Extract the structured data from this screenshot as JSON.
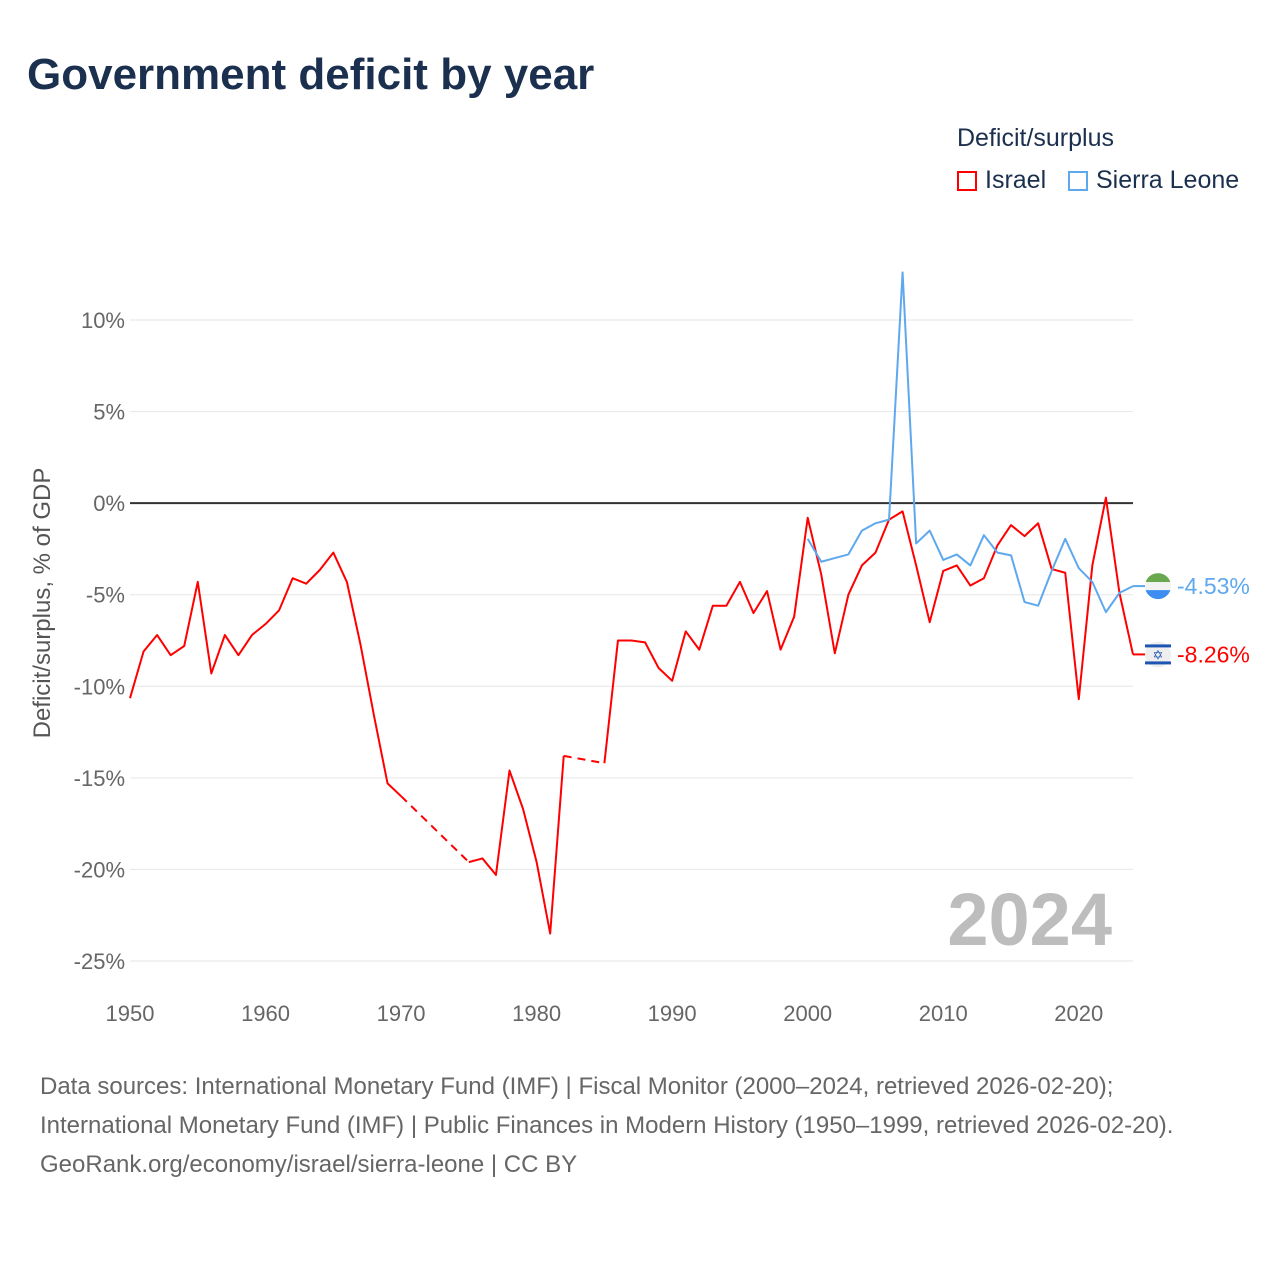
{
  "chart_data": {
    "type": "line",
    "title": "Government deficit by year",
    "ylabel": "Deficit/surplus, % of GDP",
    "xlabel": "",
    "ylim": [
      -25,
      10
    ],
    "xlim": [
      1950,
      2024
    ],
    "yticks": [
      10,
      5,
      0,
      -5,
      -10,
      -15,
      -20,
      -25
    ],
    "ytick_labels": [
      "10%",
      "5%",
      "0%",
      "-5%",
      "-10%",
      "-15%",
      "-20%",
      "-25%"
    ],
    "xticks": [
      1950,
      1960,
      1970,
      1980,
      1990,
      2000,
      2010,
      2020
    ],
    "xtick_labels": [
      "1950",
      "1960",
      "1970",
      "1980",
      "1990",
      "2000",
      "2010",
      "2020"
    ],
    "grid": true,
    "legend_title": "Deficit/surplus",
    "legend_placement": "top-right",
    "year_watermark": "2024",
    "series": [
      {
        "name": "Israel",
        "color": "#ff0000",
        "end_label": "-8.26%",
        "x_start": 1950,
        "values": [
          -10.65,
          -8.1,
          -7.2,
          -8.3,
          -7.8,
          -4.3,
          -9.3,
          -7.2,
          -8.3,
          -7.2,
          -6.6,
          -5.85,
          -4.1,
          -4.4,
          -3.65,
          -2.7,
          -4.3,
          -7.7,
          -11.6,
          -15.3,
          -16.0,
          null,
          null,
          null,
          null,
          -19.6,
          -19.4,
          -20.3,
          -14.6,
          -16.7,
          -19.6,
          -23.5,
          -13.8,
          null,
          null,
          -14.2,
          -7.5,
          -7.5,
          -7.6,
          -9.0,
          -9.7,
          -7.0,
          -8.0,
          -5.6,
          -5.6,
          -4.3,
          -6.0,
          -4.8,
          -8.0,
          -6.2,
          -0.8,
          -3.9,
          -8.2,
          -5.0,
          -3.4,
          -2.7,
          -0.9,
          -0.45,
          -3.4,
          -6.5,
          -3.7,
          -3.4,
          -4.5,
          -4.1,
          -2.3,
          -1.2,
          -1.8,
          -1.1,
          -3.6,
          -3.8,
          -10.7,
          -3.4,
          0.3,
          -4.9,
          -8.26
        ]
      },
      {
        "name": "Sierra Leone",
        "color": "#5ea8ee",
        "end_label": "-4.53%",
        "x_start": 2000,
        "values": [
          -1.95,
          -3.2,
          -3.0,
          -2.8,
          -1.5,
          -1.1,
          -0.9,
          12.6,
          -2.2,
          -1.5,
          -3.1,
          -2.8,
          -3.4,
          -1.75,
          -2.7,
          -2.85,
          -5.4,
          -5.6,
          -3.7,
          -1.95,
          -3.55,
          -4.3,
          -5.95,
          -4.9,
          -4.53
        ]
      }
    ]
  },
  "footer": {
    "sources": "Data sources: International Monetary Fund (IMF) | Fiscal Monitor (2000–2024, retrieved 2026-02-20); International Monetary Fund (IMF) | Public Finances in Modern History (1950–1999, retrieved 2026-02-20).",
    "attribution": "GeoRank.org/economy/israel/sierra-leone | CC BY"
  }
}
